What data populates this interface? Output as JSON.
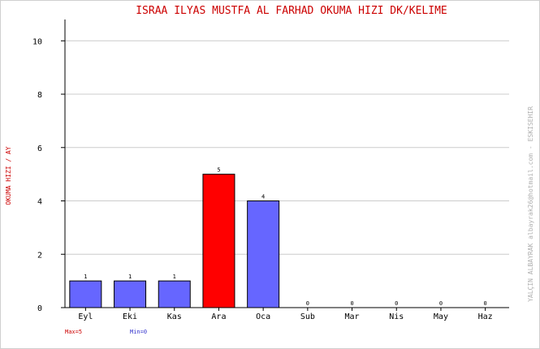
{
  "chart_data": {
    "type": "bar",
    "title": "ISRAA ILYAS MUSTFA AL FARHAD   OKUMA HIZI  DK/KELIME",
    "ylabel": "OKUMA HIZI / AY",
    "xlabel": "",
    "categories": [
      "Eyl",
      "Eki",
      "Kas",
      "Ara",
      "Oca",
      "Sub",
      "Mar",
      "Nis",
      "May",
      "Haz"
    ],
    "values": [
      1,
      1,
      1,
      5,
      4,
      0,
      0,
      0,
      0,
      0
    ],
    "data_labels": [
      "1",
      "1",
      "1",
      "5",
      "4",
      "0",
      "0",
      "0",
      "0",
      "0"
    ],
    "ylim": [
      0,
      10.8
    ],
    "yticks": [
      0,
      2,
      4,
      6,
      8,
      10
    ],
    "grid": true,
    "highlight_index": 3,
    "colors": {
      "bar": "#6666ff",
      "highlight": "#ff0000",
      "title": "#cc0000",
      "ylabel": "#cc0000",
      "max_text": "#cc0000",
      "min_text": "#3333cc",
      "watermark": "#b0b0b0",
      "grid": "#cccccc",
      "axis": "#000000"
    },
    "legend_max": "Max=5",
    "legend_min": "Min=0",
    "watermark": "YALÇIN ALBAYRAK  albayrak26@hotmail.com - ESKISEHIR"
  }
}
